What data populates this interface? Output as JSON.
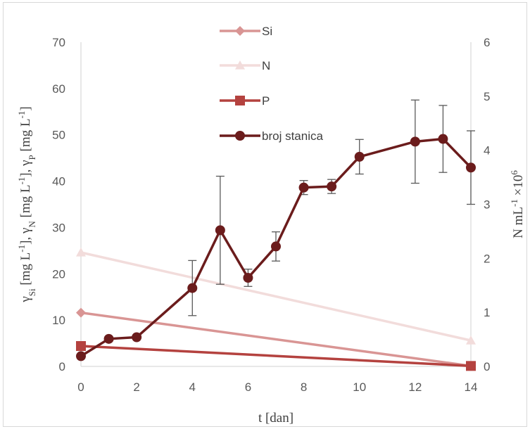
{
  "chart_data": {
    "type": "line",
    "xlabel": "t [dan]",
    "ylabel_left": "γSi [mg L-1], γN [mg L-1], γP [mg L-1]",
    "ylabel_left_parts": [
      {
        "t": "γ",
        "sub": false,
        "sup": false
      },
      {
        "t": "Si",
        "sub": true,
        "sup": false
      },
      {
        "t": " [mg L",
        "sub": false,
        "sup": false
      },
      {
        "t": "-1",
        "sub": false,
        "sup": true
      },
      {
        "t": "], γ",
        "sub": false,
        "sup": false
      },
      {
        "t": "N",
        "sub": true,
        "sup": false
      },
      {
        "t": " [mg L",
        "sub": false,
        "sup": false
      },
      {
        "t": "-1",
        "sub": false,
        "sup": true
      },
      {
        "t": "], γ",
        "sub": false,
        "sup": false
      },
      {
        "t": "P",
        "sub": true,
        "sup": false
      },
      {
        "t": " [mg L",
        "sub": false,
        "sup": false
      },
      {
        "t": "-1",
        "sub": false,
        "sup": true
      },
      {
        "t": "]",
        "sub": false,
        "sup": false
      }
    ],
    "ylabel_right": "N mL-1 ×106",
    "ylabel_right_parts": [
      {
        "t": "N mL",
        "sup": false
      },
      {
        "t": "-1",
        "sup": true
      },
      {
        "t": " ×10",
        "sup": false
      },
      {
        "t": "6",
        "sup": true
      }
    ],
    "xlim": [
      0,
      14
    ],
    "ylim_left": [
      0,
      70
    ],
    "ylim_right": [
      0,
      6
    ],
    "x_ticks": [
      0,
      2,
      4,
      6,
      8,
      10,
      12,
      14
    ],
    "y_left_ticks": [
      0,
      10,
      20,
      30,
      40,
      50,
      60,
      70
    ],
    "y_right_ticks": [
      0,
      1,
      2,
      3,
      4,
      5,
      6
    ],
    "grid": false,
    "legend_position": "top-center",
    "series": [
      {
        "name": "Si",
        "axis": "left",
        "marker": "diamond",
        "color": "#d99594",
        "x": [
          0,
          14
        ],
        "y": [
          11.6,
          0.1
        ]
      },
      {
        "name": "N",
        "axis": "left",
        "marker": "triangle",
        "color": "#f2dcdb",
        "x": [
          0,
          14
        ],
        "y": [
          24.6,
          5.6
        ]
      },
      {
        "name": "P",
        "axis": "left",
        "marker": "square",
        "color": "#b4423f",
        "x": [
          0,
          14
        ],
        "y": [
          4.4,
          0.1
        ]
      },
      {
        "name": "broj stanica",
        "axis": "right",
        "marker": "circle",
        "color": "#6b1c1c",
        "x": [
          0,
          1,
          2,
          4,
          5,
          6,
          7,
          8,
          9,
          10,
          12,
          13,
          14
        ],
        "y": [
          0.19,
          0.51,
          0.54,
          1.45,
          2.52,
          1.64,
          2.22,
          3.31,
          3.33,
          3.88,
          4.16,
          4.21,
          3.68
        ],
        "error": [
          0,
          0,
          0,
          0.51,
          1.0,
          0.16,
          0.27,
          0.13,
          0.13,
          0.32,
          0.77,
          0.62,
          0.68
        ]
      }
    ]
  }
}
